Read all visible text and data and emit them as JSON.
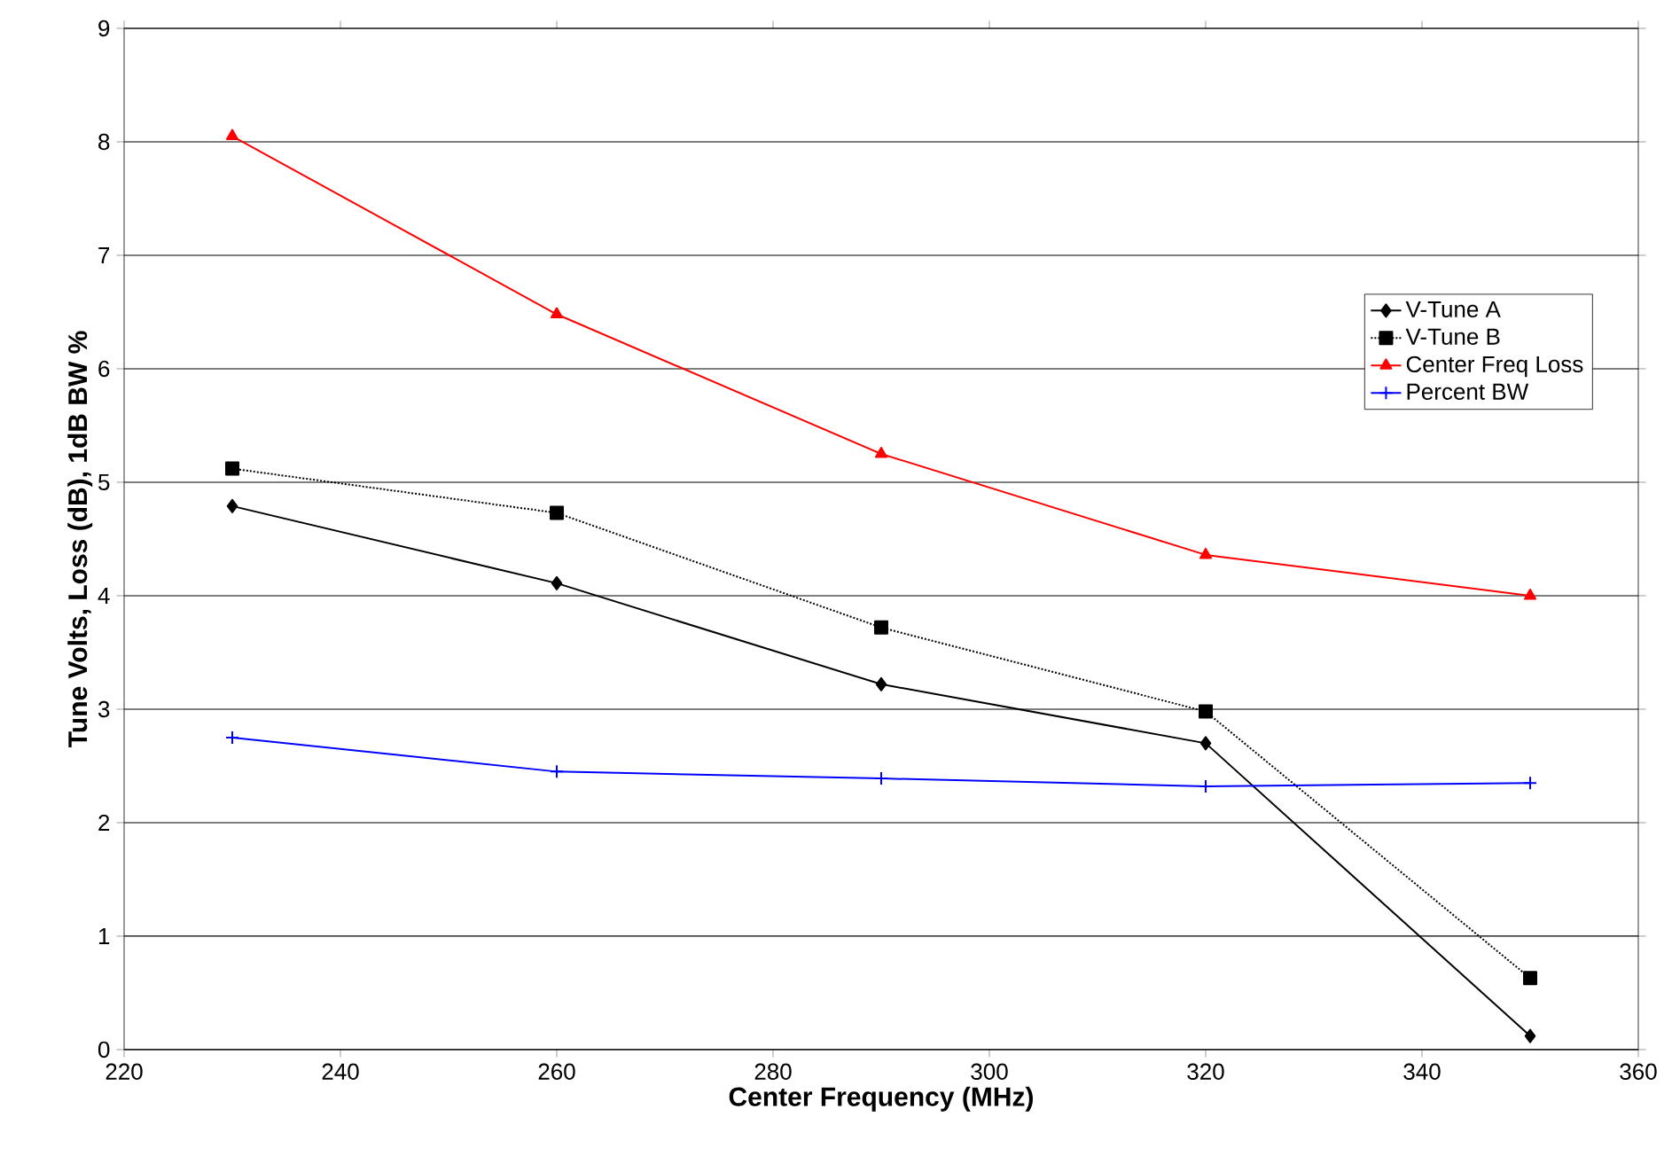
{
  "chart_data": {
    "type": "line",
    "xlabel": "Center Frequency (MHz)",
    "ylabel": "Tune Volts, Loss (dB), 1dB BW %",
    "x": [
      230,
      260,
      290,
      320,
      350
    ],
    "series": [
      {
        "name": "V-Tune A",
        "color": "#000000",
        "marker": "diamond",
        "line_style": "solid",
        "values": [
          4.79,
          4.11,
          3.22,
          2.7,
          0.12
        ]
      },
      {
        "name": "V-Tune B",
        "color": "#000000",
        "marker": "square",
        "line_style": "dotted",
        "values": [
          5.12,
          4.73,
          3.72,
          2.98,
          0.63
        ]
      },
      {
        "name": "Center Freq Loss",
        "color": "#ff0000",
        "marker": "triangle",
        "line_style": "solid",
        "values": [
          8.05,
          6.48,
          5.25,
          4.36,
          4.0
        ]
      },
      {
        "name": "Percent BW",
        "color": "#0000ff",
        "marker": "cross",
        "line_style": "solid",
        "values": [
          2.75,
          2.45,
          2.39,
          2.32,
          2.35
        ]
      }
    ],
    "xlim": [
      220,
      360
    ],
    "xticks": [
      220,
      240,
      260,
      280,
      300,
      320,
      340,
      360
    ],
    "ylim": [
      0,
      9
    ],
    "yticks": [
      0,
      1,
      2,
      3,
      4,
      5,
      6,
      7,
      8,
      9
    ],
    "grid": "y",
    "legend": "right"
  }
}
